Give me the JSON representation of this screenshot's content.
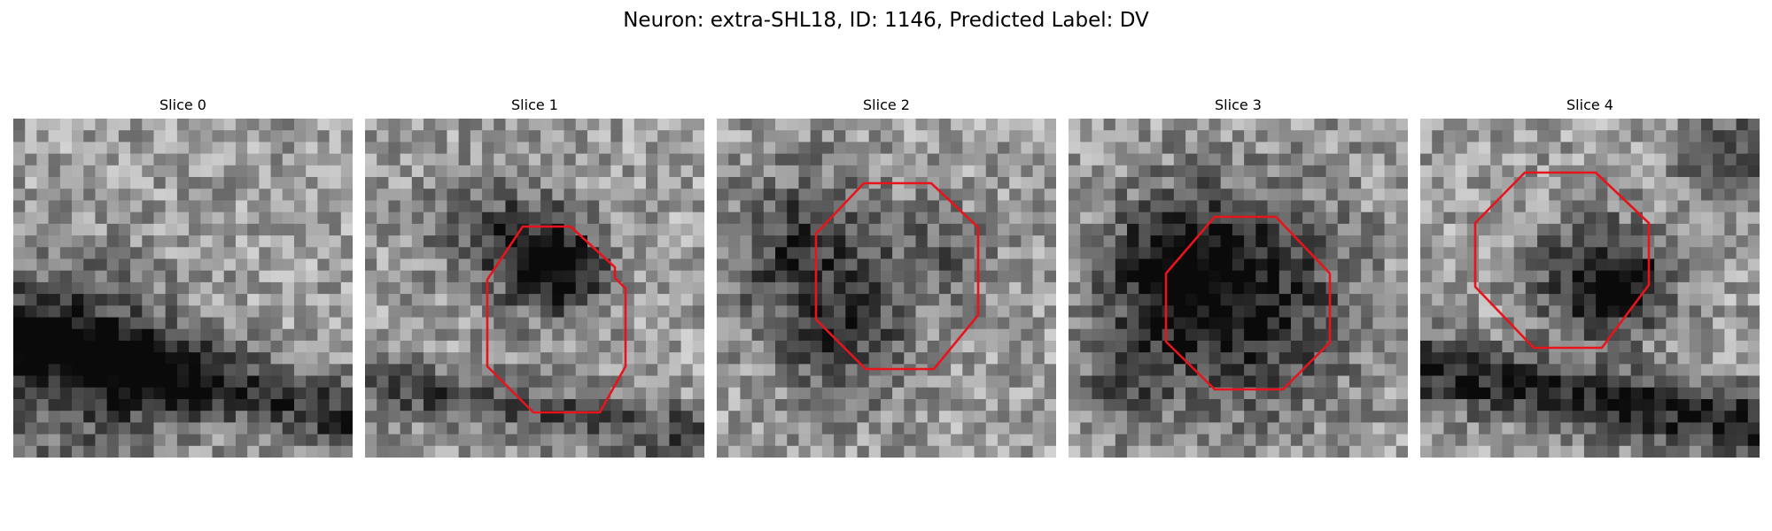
{
  "figure": {
    "title": "Neuron: extra-SHL18, ID: 1146, Predicted Label: DV"
  },
  "panels": [
    {
      "title": "Slice 0",
      "roi": false,
      "seed": 11,
      "roi_color": "#e8141c"
    },
    {
      "title": "Slice 1",
      "roi": true,
      "seed": 23,
      "roi_color": "#e8141c"
    },
    {
      "title": "Slice 2",
      "roi": true,
      "seed": 37,
      "roi_color": "#e8141c"
    },
    {
      "title": "Slice 3",
      "roi": true,
      "seed": 51,
      "roi_color": "#e8141c"
    },
    {
      "title": "Slice 4",
      "roi": true,
      "seed": 67,
      "roi_color": "#e8141c"
    }
  ]
}
